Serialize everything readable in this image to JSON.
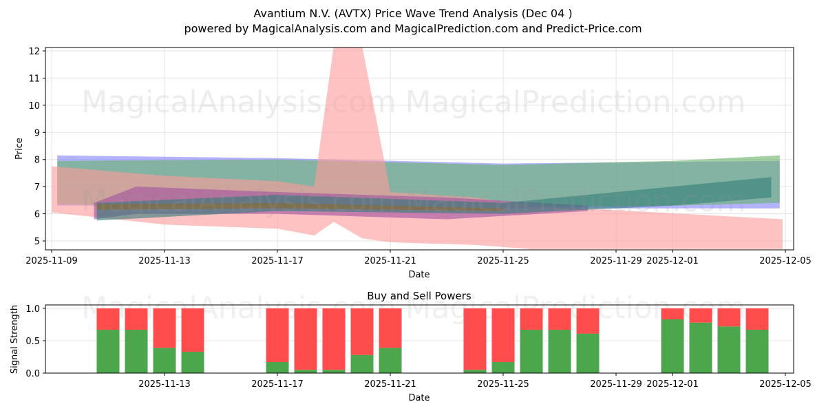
{
  "header": {
    "title": "Avantium N.V. (AVTX) Price Wave Trend Analysis (Dec 04 )",
    "subtitle": "powered by MagicalAnalysis.com and MagicalPrediction.com and Predict-Price.com"
  },
  "watermarks": [
    "MagicalAnalysis.com",
    "MagicalPrediction.com"
  ],
  "colors": {
    "buy": "#4ca64c",
    "sell": "#ff4c4c",
    "band_red": "#ff9999",
    "band_blue": "#8080ff",
    "band_green": "#66b266",
    "band_purple": "#a050a0",
    "band_teal": "#2e7b78",
    "band_brown": "#8a6a2a"
  },
  "chart_data": [
    {
      "type": "area",
      "title": "Avantium N.V. (AVTX) Price Wave Trend Analysis (Dec 04 )",
      "xlabel": "Date",
      "ylabel": "Price",
      "ylim": [
        4.7,
        12.15
      ],
      "yticks": [
        5,
        6,
        7,
        8,
        9,
        10,
        11,
        12
      ],
      "xticks": [
        "2025-11-09",
        "2025-11-13",
        "2025-11-17",
        "2025-11-21",
        "2025-11-25",
        "2025-11-29",
        "2025-12-01",
        "2025-12-05"
      ],
      "grid": true,
      "legend": "none",
      "series": [
        {
          "name": "blue band",
          "color": "#8080ff",
          "x": [
            "2025-11-09.2",
            "2025-11-17",
            "2025-11-25",
            "2025-12-04.8"
          ],
          "upper": [
            8.15,
            8.05,
            7.85,
            7.95
          ],
          "lower": [
            6.3,
            6.3,
            6.2,
            6.2
          ]
        },
        {
          "name": "green band",
          "color": "#66b266",
          "x": [
            "2025-11-09.2",
            "2025-11-17",
            "2025-11-25",
            "2025-12-01",
            "2025-12-04.8"
          ],
          "upper": [
            7.95,
            8.0,
            7.8,
            7.95,
            8.15
          ],
          "lower": [
            6.35,
            6.3,
            6.25,
            6.3,
            6.4
          ]
        },
        {
          "name": "red band",
          "color": "#ff9999",
          "x": [
            "2025-11-09",
            "2025-11-13",
            "2025-11-17",
            "2025-11-18.3",
            "2025-11-19",
            "2025-11-20",
            "2025-11-21",
            "2025-11-24",
            "2025-11-26",
            "2025-12-04.9"
          ],
          "upper": [
            7.75,
            7.4,
            7.2,
            7.0,
            12.2,
            12.2,
            6.8,
            6.6,
            6.3,
            5.8
          ],
          "lower": [
            6.05,
            5.6,
            5.45,
            5.2,
            5.7,
            5.1,
            4.95,
            4.85,
            4.7,
            4.7
          ]
        },
        {
          "name": "purple band",
          "color": "#a050a0",
          "x": [
            "2025-11-10.5",
            "2025-11-12",
            "2025-11-17",
            "2025-11-23",
            "2025-11-28"
          ],
          "upper": [
            6.4,
            7.0,
            6.8,
            6.6,
            6.3
          ],
          "lower": [
            5.8,
            6.0,
            6.0,
            5.8,
            6.1
          ]
        },
        {
          "name": "teal band",
          "color": "#2e7b78",
          "x": [
            "2025-11-10.6",
            "2025-11-17",
            "2025-11-25",
            "2025-12-01",
            "2025-12-04.5"
          ],
          "upper": [
            6.4,
            6.7,
            6.4,
            7.0,
            7.35
          ],
          "lower": [
            5.75,
            6.1,
            6.0,
            6.3,
            6.6
          ]
        },
        {
          "name": "brown band",
          "color": "#8a6a2a",
          "x": [
            "2025-11-10.6",
            "2025-11-17",
            "2025-11-25"
          ],
          "upper": [
            6.35,
            6.4,
            6.2
          ],
          "lower": [
            6.15,
            6.2,
            6.1
          ]
        }
      ]
    },
    {
      "type": "bar",
      "title": "Buy and Sell Powers",
      "xlabel": "Date",
      "ylabel": "Signal Strength",
      "ylim": [
        0,
        1.05
      ],
      "yticks": [
        "0.0",
        "0.5",
        "1.0"
      ],
      "xticks": [
        "2025-11-13",
        "2025-11-17",
        "2025-11-21",
        "2025-11-25",
        "2025-11-29",
        "2025-12-01",
        "2025-12-05"
      ],
      "grid": true,
      "categories": [
        "2025-11-11",
        "2025-11-12",
        "2025-11-13",
        "2025-11-14",
        "2025-11-17",
        "2025-11-18",
        "2025-11-19",
        "2025-11-20",
        "2025-11-21",
        "2025-11-24",
        "2025-11-25",
        "2025-11-26",
        "2025-11-27",
        "2025-11-28",
        "2025-12-01",
        "2025-12-02",
        "2025-12-03",
        "2025-12-04"
      ],
      "series": [
        {
          "name": "Buy",
          "color": "#4ca64c",
          "values": [
            0.67,
            0.67,
            0.39,
            0.33,
            0.17,
            0.05,
            0.05,
            0.28,
            0.39,
            0.05,
            0.17,
            0.67,
            0.67,
            0.61,
            0.83,
            0.78,
            0.72,
            0.67
          ]
        },
        {
          "name": "Sell",
          "color": "#ff4c4c",
          "values": [
            0.33,
            0.33,
            0.61,
            0.67,
            0.83,
            0.95,
            0.95,
            0.72,
            0.61,
            0.95,
            0.83,
            0.33,
            0.33,
            0.39,
            0.17,
            0.22,
            0.28,
            0.33
          ]
        }
      ]
    }
  ]
}
